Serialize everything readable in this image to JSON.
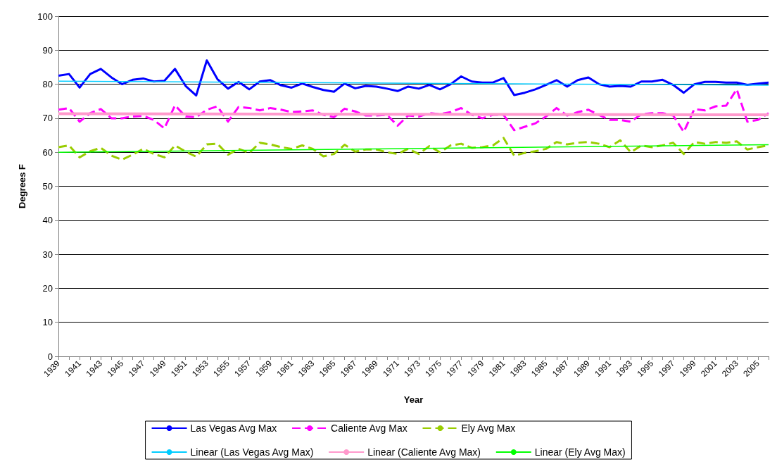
{
  "chart_data": {
    "type": "line",
    "xlabel": "Year",
    "ylabel": "Degrees F",
    "categories": [
      "1939",
      null,
      "1941",
      null,
      "1943",
      null,
      "1945",
      null,
      "1947",
      null,
      "1949",
      null,
      "1951",
      null,
      "1953",
      null,
      "1955",
      null,
      "1957",
      null,
      "1959",
      null,
      "1961",
      null,
      "1963",
      null,
      "1965",
      null,
      "1967",
      null,
      "1969",
      null,
      "1971",
      null,
      "1973",
      null,
      "1975",
      null,
      "1977",
      null,
      "1979",
      null,
      "1981",
      null,
      "1983",
      null,
      "1985",
      null,
      "1987",
      null,
      "1989",
      null,
      "1991",
      null,
      "1993",
      null,
      "1995",
      null,
      "1997",
      null,
      "1999",
      null,
      "2001",
      null,
      "2003",
      null,
      "2005",
      null
    ],
    "series": [
      {
        "name": "Las Vegas Avg Max",
        "color": "#0000ff",
        "line_style": "solid",
        "values": [
          82.5,
          83,
          79,
          83,
          84.5,
          82,
          80,
          81.3,
          81.7,
          80.8,
          81,
          84.5,
          79.5,
          76.7,
          87,
          81.5,
          78.7,
          80.7,
          78.5,
          80.8,
          81.2,
          79.7,
          79,
          80.2,
          79.2,
          78.3,
          77.8,
          80.2,
          78.8,
          79.5,
          79.3,
          78.7,
          78,
          79.3,
          78.7,
          79.8,
          78.5,
          80,
          82.3,
          80.8,
          80.5,
          80.5,
          81.8,
          76.8,
          77.5,
          78.5,
          79.8,
          81.2,
          79.3,
          81.2,
          82,
          80,
          79.3,
          79.5,
          79.3,
          80.8,
          80.8,
          81.3,
          79.8,
          77.5,
          80,
          80.7,
          80.7,
          80.5,
          80.5,
          79.8,
          80.2,
          80.5
        ]
      },
      {
        "name": "Caliente Avg Max",
        "color": "#ff00ff",
        "line_style": "dashed",
        "values": [
          72.5,
          73,
          69,
          71.5,
          72.7,
          70,
          70,
          70.5,
          70.7,
          69.5,
          67,
          73.8,
          70.5,
          70.3,
          72.5,
          73.5,
          69,
          73.3,
          73,
          72.3,
          73,
          72.5,
          71.8,
          72,
          72.3,
          71,
          70.3,
          72.8,
          72,
          70.8,
          70.8,
          71,
          67.8,
          70.8,
          70.5,
          71.5,
          71.2,
          71.8,
          73,
          71,
          70,
          71,
          71,
          66.5,
          67.5,
          68.5,
          70.5,
          73,
          70.8,
          71.8,
          72.5,
          71,
          69.5,
          69.5,
          69,
          71.2,
          71.5,
          71.5,
          70.8,
          66,
          72.7,
          72.3,
          73.5,
          73.7,
          78.5,
          69,
          69.5,
          71.5
        ]
      },
      {
        "name": "Ely Avg Max",
        "color": "#99cc00",
        "line_style": "dashed",
        "values": [
          61.5,
          62,
          58.5,
          60.3,
          61.3,
          59,
          57.8,
          59.3,
          61,
          59.5,
          58.5,
          62,
          60.2,
          58.7,
          62.3,
          62.5,
          59.3,
          61,
          59.8,
          62.8,
          62.3,
          61.5,
          61,
          62,
          61,
          58.8,
          59.5,
          62.2,
          60.2,
          60.8,
          60.8,
          60,
          59.5,
          61,
          59.5,
          61.8,
          60,
          62,
          62.5,
          61.3,
          61.5,
          62,
          64.2,
          59,
          59.8,
          60.3,
          61,
          63,
          62.3,
          62.8,
          63,
          62.5,
          61.5,
          63.5,
          60,
          62,
          61.5,
          62,
          62.8,
          59.5,
          63,
          62.5,
          63,
          62.8,
          63.2,
          60.8,
          61.5,
          62
        ]
      },
      {
        "name": "Linear (Las Vegas Avg Max)",
        "color": "#00ccff",
        "line_style": "solid",
        "values": [
          80.9,
          null,
          null,
          null,
          null,
          null,
          null,
          null,
          null,
          null,
          null,
          null,
          null,
          null,
          null,
          null,
          null,
          null,
          null,
          null,
          null,
          null,
          null,
          null,
          null,
          null,
          null,
          null,
          null,
          null,
          null,
          null,
          null,
          null,
          null,
          null,
          null,
          null,
          null,
          null,
          null,
          null,
          null,
          null,
          null,
          null,
          null,
          null,
          null,
          null,
          null,
          null,
          null,
          null,
          null,
          null,
          null,
          null,
          null,
          null,
          null,
          null,
          null,
          null,
          null,
          null,
          null,
          79.7
        ]
      },
      {
        "name": "Linear (Caliente Avg Max)",
        "color": "#ff99cc",
        "line_style": "solid",
        "values": [
          71.3,
          null,
          null,
          null,
          null,
          null,
          null,
          null,
          null,
          null,
          null,
          null,
          null,
          null,
          null,
          null,
          null,
          null,
          null,
          null,
          null,
          null,
          null,
          null,
          null,
          null,
          null,
          null,
          null,
          null,
          null,
          null,
          null,
          null,
          null,
          null,
          null,
          null,
          null,
          null,
          null,
          null,
          null,
          null,
          null,
          null,
          null,
          null,
          null,
          null,
          null,
          null,
          null,
          null,
          null,
          null,
          null,
          null,
          null,
          null,
          null,
          null,
          null,
          null,
          null,
          null,
          null,
          71.0
        ]
      },
      {
        "name": "Linear (Ely Avg Max)",
        "color": "#00ff00",
        "line_style": "solid",
        "values": [
          60,
          null,
          null,
          null,
          null,
          null,
          null,
          null,
          null,
          null,
          null,
          null,
          null,
          null,
          null,
          null,
          null,
          null,
          null,
          null,
          null,
          null,
          null,
          null,
          null,
          null,
          null,
          null,
          null,
          null,
          null,
          null,
          null,
          null,
          null,
          null,
          null,
          null,
          null,
          null,
          null,
          null,
          null,
          null,
          null,
          null,
          null,
          null,
          null,
          null,
          null,
          null,
          null,
          null,
          null,
          null,
          null,
          null,
          null,
          null,
          null,
          null,
          null,
          null,
          null,
          null,
          null,
          62.2
        ]
      }
    ],
    "ylim": [
      0,
      100
    ],
    "yticks": [
      0,
      10,
      20,
      30,
      40,
      50,
      60,
      70,
      80,
      90,
      100
    ],
    "grid": "y",
    "legend": "bottom",
    "marker": "none"
  }
}
